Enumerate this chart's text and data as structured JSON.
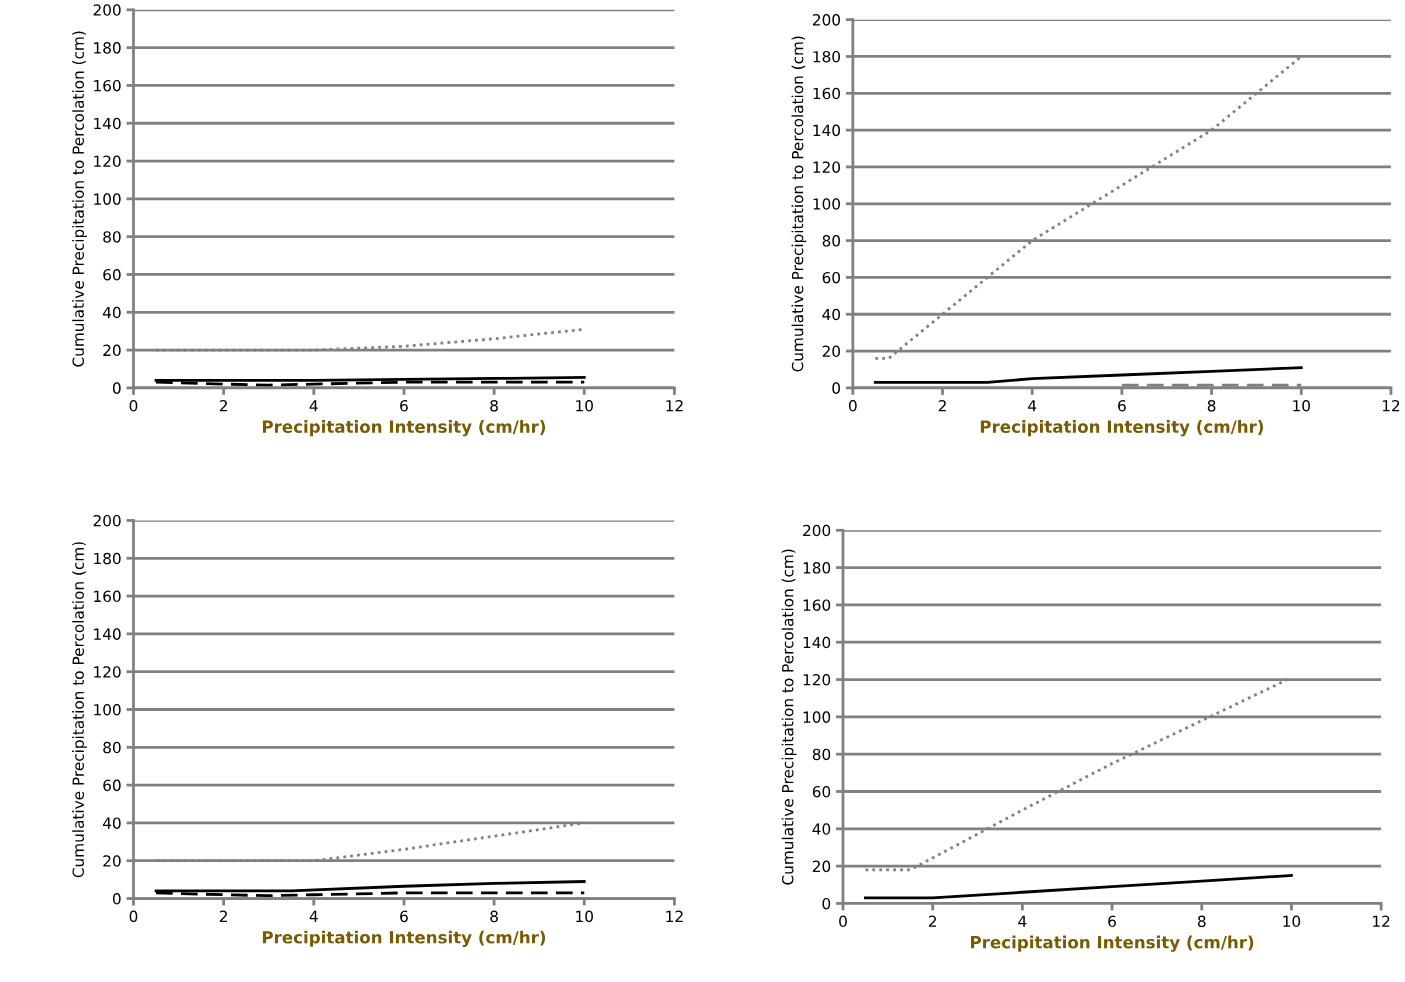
{
  "chart_data": [
    {
      "type": "line",
      "xlabel": "Precipitation Intensity (cm/hr)",
      "ylabel": "Cumulative Precipitation to Percolation (cm)",
      "xlim": [
        0,
        12
      ],
      "xticks": [
        0,
        2,
        4,
        6,
        8,
        10,
        12
      ],
      "ylim": [
        0,
        200
      ],
      "yticks": [
        0,
        20,
        40,
        60,
        80,
        100,
        120,
        140,
        160,
        180,
        200
      ],
      "grid": "y",
      "marker": "none",
      "series": [
        {
          "color": "#000000",
          "line_style": "solid",
          "x": [
            0.5,
            2,
            4,
            6,
            8,
            10
          ],
          "values": [
            4,
            4,
            4,
            4.5,
            5,
            5.5
          ]
        },
        {
          "color": "#000000",
          "line_style": "dashed",
          "x": [
            0.5,
            2,
            3,
            4,
            6,
            8,
            10
          ],
          "values": [
            3,
            2,
            1.5,
            2,
            3,
            3,
            3
          ]
        },
        {
          "color": "#808080",
          "line_style": "dotted",
          "x": [
            0.5,
            2,
            4,
            5,
            6,
            8,
            10
          ],
          "values": [
            20,
            20,
            20,
            21,
            22,
            26,
            31
          ]
        }
      ]
    },
    {
      "type": "line",
      "xlabel": "Precipitation Intensity (cm/hr)",
      "ylabel": "Cumulative Precipitation to Percolation (cm)",
      "xlim": [
        0,
        12
      ],
      "xticks": [
        0,
        2,
        4,
        6,
        8,
        10,
        12
      ],
      "ylim": [
        0,
        200
      ],
      "yticks": [
        0,
        20,
        40,
        60,
        80,
        100,
        120,
        140,
        160,
        180,
        200
      ],
      "grid": "y",
      "marker": "none",
      "series": [
        {
          "color": "#000000",
          "line_style": "solid",
          "x": [
            0.5,
            2,
            3,
            4,
            6,
            8,
            10
          ],
          "values": [
            3,
            3,
            3,
            5,
            7,
            9,
            11
          ]
        },
        {
          "color": "#808080",
          "line_style": "dashed",
          "x": [
            6,
            8,
            10
          ],
          "values": [
            1.5,
            1.5,
            1.5
          ]
        },
        {
          "color": "#808080",
          "line_style": "dotted",
          "x": [
            0.5,
            0.8,
            1,
            4,
            6,
            8,
            10
          ],
          "values": [
            16,
            16,
            20,
            80,
            110,
            140,
            180
          ]
        }
      ]
    },
    {
      "type": "line",
      "xlabel": "Precipitation Intensity (cm/hr)",
      "ylabel": "Cumulative Precipitation to Percolation (cm)",
      "xlim": [
        0,
        12
      ],
      "xticks": [
        0,
        2,
        4,
        6,
        8,
        10,
        12
      ],
      "ylim": [
        0,
        200
      ],
      "yticks": [
        0,
        20,
        40,
        60,
        80,
        100,
        120,
        140,
        160,
        180,
        200
      ],
      "grid": "y",
      "marker": "none",
      "series": [
        {
          "color": "#000000",
          "line_style": "solid",
          "x": [
            0.5,
            2,
            3.5,
            6,
            8,
            10
          ],
          "values": [
            4,
            4,
            4,
            6.5,
            8,
            9
          ]
        },
        {
          "color": "#000000",
          "line_style": "dashed",
          "x": [
            0.5,
            2,
            3,
            4,
            6,
            8,
            10
          ],
          "values": [
            3,
            2,
            1.5,
            2,
            3,
            3,
            3
          ]
        },
        {
          "color": "#808080",
          "line_style": "dotted",
          "x": [
            0.5,
            2,
            4,
            6,
            8,
            10
          ],
          "values": [
            20,
            20,
            20,
            26,
            33,
            40
          ]
        }
      ]
    },
    {
      "type": "line",
      "xlabel": "Precipitation Intensity (cm/hr)",
      "ylabel": "Cumulative Precipitation to Percolation (cm)",
      "xlim": [
        0,
        12
      ],
      "xticks": [
        0,
        2,
        4,
        6,
        8,
        10,
        12
      ],
      "ylim": [
        0,
        200
      ],
      "yticks": [
        0,
        20,
        40,
        60,
        80,
        100,
        120,
        140,
        160,
        180,
        200
      ],
      "grid": "y",
      "marker": "none",
      "series": [
        {
          "color": "#000000",
          "line_style": "solid",
          "x": [
            0.5,
            2,
            4,
            6,
            8,
            10
          ],
          "values": [
            3,
            3,
            6,
            9,
            12,
            15
          ]
        },
        {
          "color": "#808080",
          "line_style": "dotted",
          "x": [
            0.5,
            1.5,
            4,
            6,
            8,
            10
          ],
          "values": [
            18,
            18,
            50,
            75,
            98,
            121
          ]
        }
      ]
    }
  ]
}
